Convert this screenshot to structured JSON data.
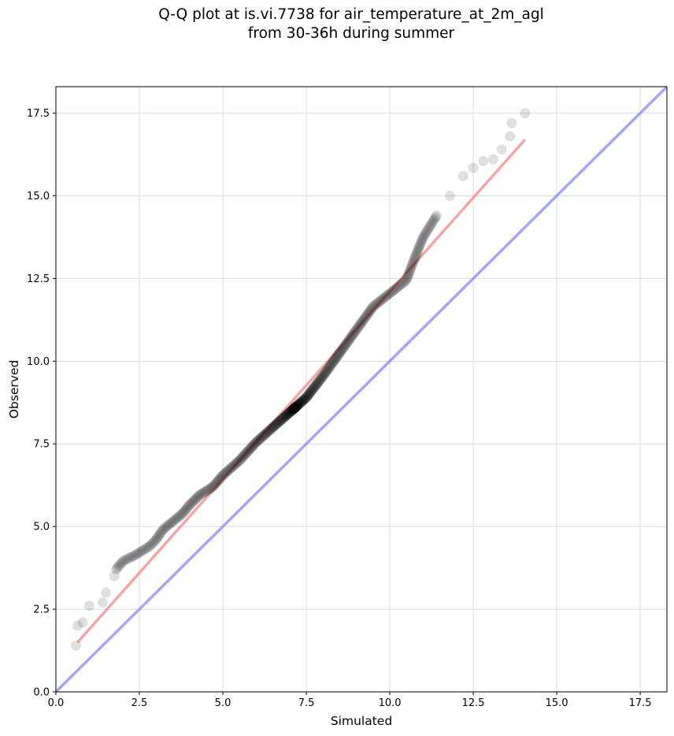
{
  "chart_data": {
    "type": "scatter",
    "title_lines": [
      "Q-Q plot at is.vi.7738 for air_temperature_at_2m_agl",
      "from 30-36h during summer"
    ],
    "xlabel": "Simulated",
    "ylabel": "Observed",
    "xlim": [
      0,
      18.3
    ],
    "ylim": [
      0,
      18.3
    ],
    "xticks": [
      "0.0",
      "2.5",
      "5.0",
      "7.5",
      "10.0",
      "12.5",
      "15.0",
      "17.5"
    ],
    "yticks": [
      "0.0",
      "2.5",
      "5.0",
      "7.5",
      "10.0",
      "12.5",
      "15.0",
      "17.5"
    ],
    "grid": true,
    "colors": {
      "points": "#000000",
      "fit_line": "#f08080",
      "identity_line": "#8080f0",
      "grid": "#dddddd",
      "axes": "#000000"
    },
    "fit_line": {
      "x": [
        0.65,
        14.05
      ],
      "y": [
        1.5,
        16.7
      ]
    },
    "identity_line": {
      "x": [
        0,
        18.3
      ],
      "y": [
        0,
        18.3
      ]
    },
    "knots": [
      [
        0.6,
        1.4
      ],
      [
        0.65,
        2.0
      ],
      [
        0.8,
        2.1
      ],
      [
        1.0,
        2.6
      ],
      [
        1.4,
        2.7
      ],
      [
        1.5,
        3.0
      ],
      [
        1.75,
        3.5
      ],
      [
        1.8,
        3.7
      ],
      [
        2.0,
        3.95
      ],
      [
        2.4,
        4.15
      ],
      [
        2.8,
        4.4
      ],
      [
        3.0,
        4.6
      ],
      [
        3.2,
        4.9
      ],
      [
        3.5,
        5.15
      ],
      [
        3.8,
        5.4
      ],
      [
        4.0,
        5.65
      ],
      [
        4.3,
        5.95
      ],
      [
        4.7,
        6.2
      ],
      [
        5.0,
        6.55
      ],
      [
        5.5,
        7.0
      ],
      [
        6.0,
        7.55
      ],
      [
        6.5,
        8.0
      ],
      [
        7.0,
        8.45
      ],
      [
        7.5,
        8.9
      ],
      [
        8.0,
        9.55
      ],
      [
        8.5,
        10.25
      ],
      [
        9.0,
        10.95
      ],
      [
        9.5,
        11.65
      ],
      [
        10.0,
        12.05
      ],
      [
        10.5,
        12.45
      ],
      [
        10.7,
        13.0
      ],
      [
        11.0,
        13.75
      ],
      [
        11.4,
        14.4
      ],
      [
        11.8,
        15.0
      ],
      [
        12.2,
        15.6
      ],
      [
        12.5,
        15.85
      ],
      [
        12.8,
        16.05
      ],
      [
        13.1,
        16.1
      ],
      [
        13.35,
        16.4
      ],
      [
        13.6,
        16.8
      ],
      [
        13.65,
        17.2
      ],
      [
        14.05,
        17.5
      ]
    ],
    "quantile_count": 400
  }
}
